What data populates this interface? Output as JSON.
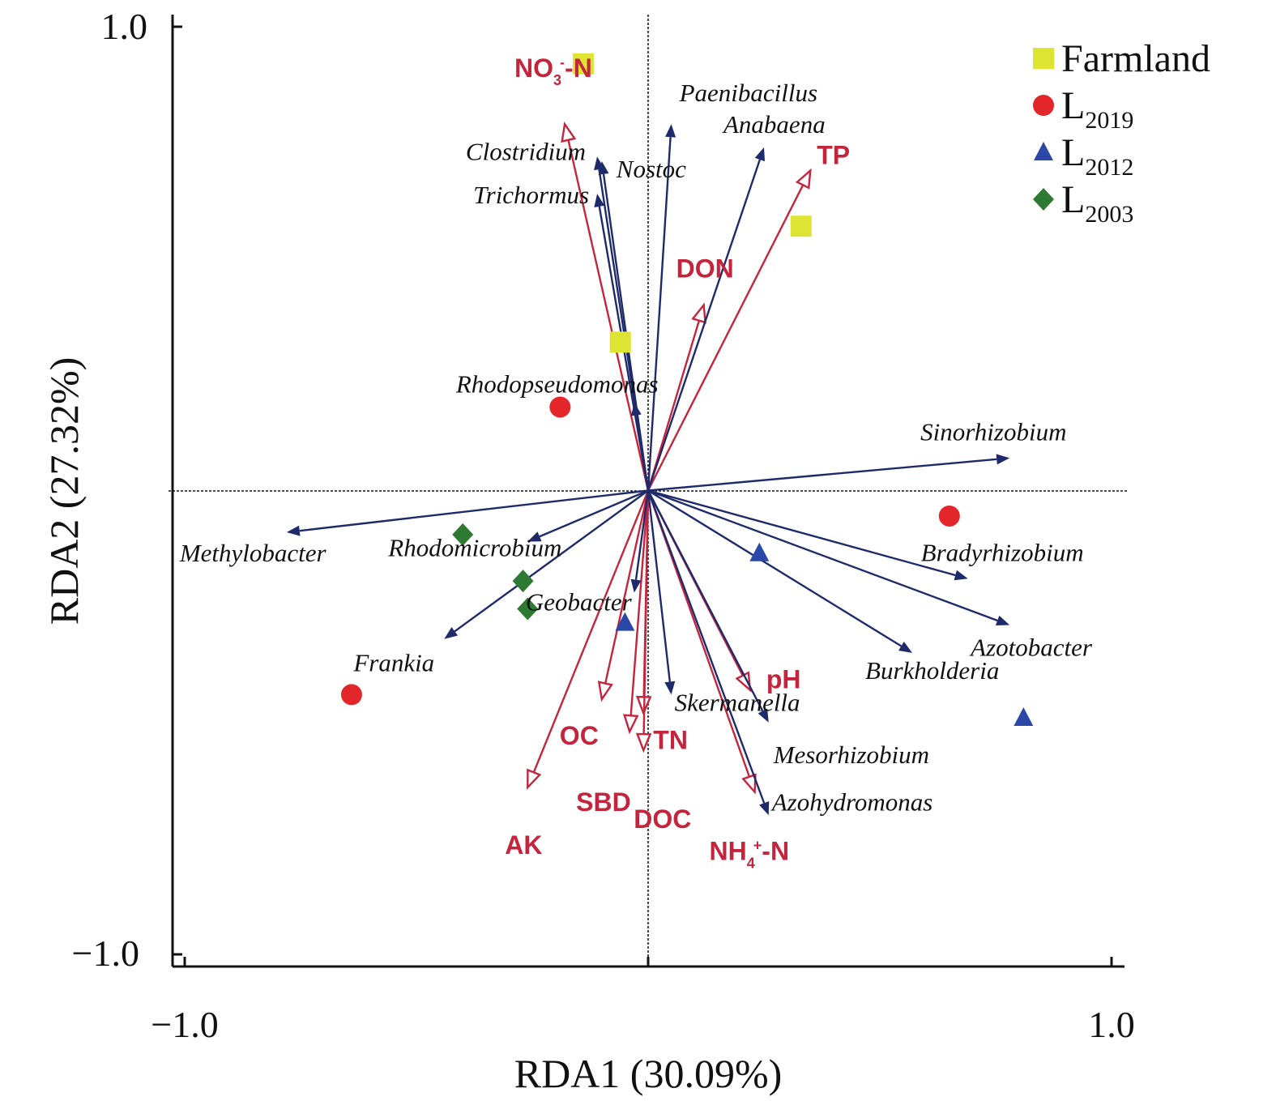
{
  "chart_data": {
    "type": "scatter",
    "subtype": "rda-biplot",
    "xlabel": "RDA1 (30.09%)",
    "ylabel": "RDA2 (27.32%)",
    "xlim": [
      -1.0,
      1.0
    ],
    "ylim": [
      -1.0,
      1.0
    ],
    "x_tick_labels": [
      "−1.0",
      "1.0"
    ],
    "y_tick_labels": [
      "1.0",
      "−1.0"
    ],
    "grid": false,
    "zero_lines": true,
    "legend_position": "top-right",
    "colors": {
      "species_arrow": "#1f2a6b",
      "env_arrow": "#c4253d",
      "Farmland": "#dde432",
      "L2019": "#e3262a",
      "L2012": "#2b47a8",
      "L2003": "#2f7a33"
    },
    "groups": [
      {
        "key": "Farmland",
        "label": "Farmland",
        "sub": "",
        "marker": "square",
        "points": [
          [
            -0.14,
            0.92
          ],
          [
            0.33,
            0.57
          ],
          [
            -0.06,
            0.32
          ]
        ]
      },
      {
        "key": "L2019",
        "label": "L",
        "sub": "2019",
        "marker": "circle",
        "points": [
          [
            -0.19,
            0.18
          ],
          [
            0.65,
            -0.055
          ],
          [
            -0.64,
            -0.44
          ]
        ]
      },
      {
        "key": "L2012",
        "label": "L",
        "sub": "2012",
        "marker": "triangle",
        "points": [
          [
            0.24,
            -0.135
          ],
          [
            -0.05,
            -0.285
          ],
          [
            0.81,
            -0.49
          ]
        ]
      },
      {
        "key": "L2003",
        "label": "L",
        "sub": "2003",
        "marker": "diamond",
        "points": [
          [
            -0.4,
            -0.095
          ],
          [
            -0.27,
            -0.195
          ],
          [
            -0.26,
            -0.255
          ]
        ]
      }
    ],
    "species": [
      {
        "name": "Paenibacillus",
        "x": 0.05,
        "y": 0.79
      },
      {
        "name": "Anabaena",
        "x": 0.25,
        "y": 0.74
      },
      {
        "name": "Clostridium",
        "x": -0.11,
        "y": 0.72
      },
      {
        "name": "Nostoc",
        "x": -0.1,
        "y": 0.71
      },
      {
        "name": "Trichormus",
        "x": -0.11,
        "y": 0.64
      },
      {
        "name": "Rhodopseudomonas",
        "x": -0.03,
        "y": 0.19
      },
      {
        "name": "Sinorhizobium",
        "x": 0.78,
        "y": 0.07
      },
      {
        "name": "Methylobacter",
        "x": -0.78,
        "y": -0.09
      },
      {
        "name": "Rhodomicrobium",
        "x": -0.26,
        "y": -0.11
      },
      {
        "name": "Bradyrhizobium",
        "x": 0.69,
        "y": -0.19
      },
      {
        "name": "Geobacter",
        "x": -0.03,
        "y": -0.22
      },
      {
        "name": "Azotobacter",
        "x": 0.78,
        "y": -0.29
      },
      {
        "name": "Frankia",
        "x": -0.44,
        "y": -0.32
      },
      {
        "name": "Burkholderia",
        "x": 0.57,
        "y": -0.35
      },
      {
        "name": "Skermanella",
        "x": 0.05,
        "y": -0.44
      },
      {
        "name": "Mesorhizobium",
        "x": 0.26,
        "y": -0.5
      },
      {
        "name": "Azohydromonas",
        "x": 0.26,
        "y": -0.7
      }
    ],
    "env": [
      {
        "label": "NO",
        "sub": "3",
        "sup": "-",
        "suffix": "-N",
        "x": -0.18,
        "y": 0.79
      },
      {
        "label": "TP",
        "sub": "",
        "sup": "",
        "suffix": "",
        "x": 0.35,
        "y": 0.69
      },
      {
        "label": "DON",
        "sub": "",
        "sup": "",
        "suffix": "",
        "x": 0.12,
        "y": 0.4
      },
      {
        "label": "pH",
        "sub": "",
        "sup": "",
        "suffix": "",
        "x": 0.22,
        "y": -0.43
      },
      {
        "label": "OC",
        "sub": "",
        "sup": "",
        "suffix": "",
        "x": -0.1,
        "y": -0.45
      },
      {
        "label": "TN",
        "sub": "",
        "sup": "",
        "suffix": "",
        "x": -0.01,
        "y": -0.48
      },
      {
        "label": "SBD",
        "sub": "",
        "sup": "",
        "suffix": "",
        "x": -0.04,
        "y": -0.52
      },
      {
        "label": "DOC",
        "sub": "",
        "sup": "",
        "suffix": "",
        "x": -0.01,
        "y": -0.56
      },
      {
        "label": "AK",
        "sub": "",
        "sup": "",
        "suffix": "",
        "x": -0.26,
        "y": -0.64
      },
      {
        "label": "NH",
        "sub": "4",
        "sup": "+",
        "suffix": "-N",
        "x": 0.23,
        "y": -0.65
      }
    ]
  }
}
